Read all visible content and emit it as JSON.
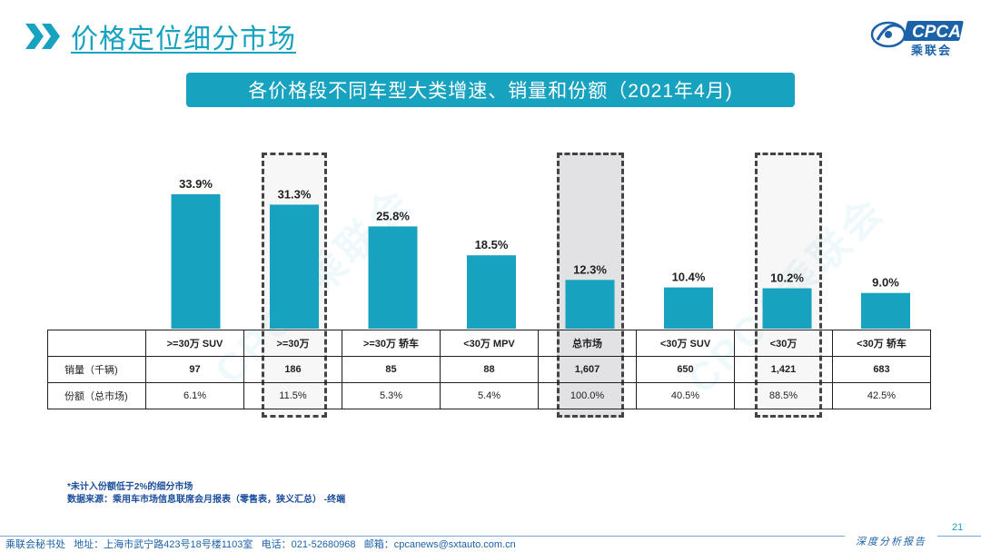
{
  "page": {
    "title": "价格定位细分市场",
    "banner": "各价格段不同车型大类增速、销量和份额（2021年4月)",
    "logo_text": "CPCA",
    "logo_sub": "乘联会",
    "watermark": "CPCA乘联会",
    "page_number": "21",
    "report_label": "深度分析报告"
  },
  "colors": {
    "accent": "#17a2c0",
    "bar": "#17a2c0",
    "text_blue": "#1b4e9b",
    "footer_blue": "#1b62a8"
  },
  "chart_data": {
    "type": "bar",
    "title": "各价格段不同车型大类增速、销量和份额（2021年4月)",
    "categories": [
      ">=30万 SUV",
      ">=30万",
      ">=30万 轿车",
      "<30万 MPV",
      "总市场",
      "<30万 SUV",
      "<30万",
      "<30万 轿车"
    ],
    "values": [
      33.9,
      31.3,
      25.8,
      18.5,
      12.3,
      10.4,
      10.2,
      9.0
    ],
    "value_labels": [
      "33.9%",
      "31.3%",
      "25.8%",
      "18.5%",
      "12.3%",
      "10.4%",
      "10.2%",
      "9.0%"
    ],
    "unit": "%",
    "ylim": [
      0,
      40
    ],
    "grid": false,
    "highlighted": [
      ">=30万",
      "总市场",
      "<30万"
    ]
  },
  "table": {
    "header": [
      "",
      ">=30万 SUV",
      ">=30万",
      ">=30万 轿车",
      "<30万 MPV",
      "总市场",
      "<30万 SUV",
      "<30万",
      "<30万 轿车"
    ],
    "rows": [
      {
        "label": "销量（千辆)",
        "values": [
          "97",
          "186",
          "85",
          "88",
          "1,607",
          "650",
          "1,421",
          "683"
        ]
      },
      {
        "label": "份额（总市场)",
        "values": [
          "6.1%",
          "11.5%",
          "5.3%",
          "5.4%",
          "100.0%",
          "40.5%",
          "88.5%",
          "42.5%"
        ]
      }
    ]
  },
  "footnotes": {
    "note1": "*未计入份额低于2%的细分市场",
    "note2": "数据来源：乘用车市场信息联席会月报表（零售表，狭义汇总）  -终端"
  },
  "footer": {
    "text": "乘联会秘书处   地址：上海市武宁路423号18号楼1103室   电话：021-52680968   邮箱：cpcanews@sxtauto.com.cn"
  }
}
